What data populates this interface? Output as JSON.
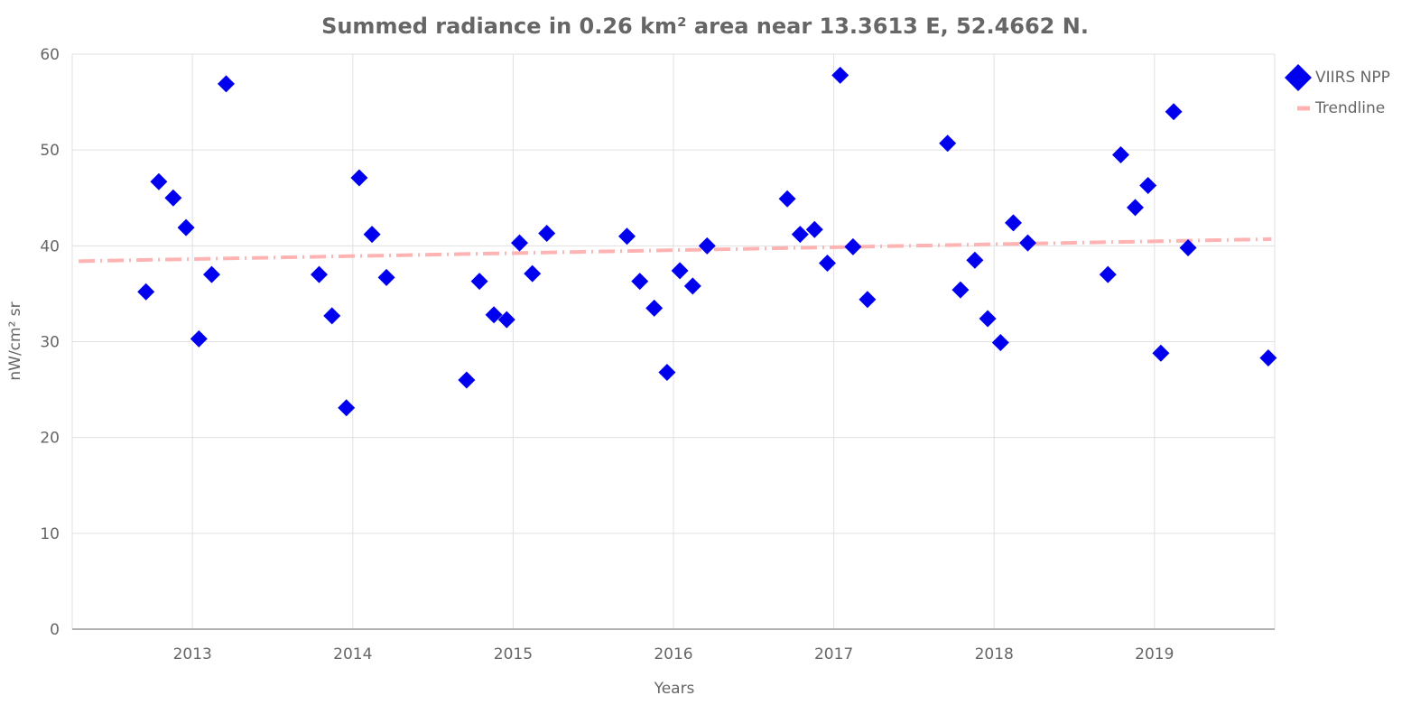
{
  "chart_data": {
    "type": "scatter",
    "title": "Summed radiance in 0.26 km² area near 13.3613 E, 52.4662 N.",
    "xlabel": "Years",
    "ylabel": "nW/cm² sr",
    "xlim": [
      2012.25,
      2019.75
    ],
    "ylim": [
      0,
      60
    ],
    "x_ticks": [
      2013,
      2014,
      2015,
      2016,
      2017,
      2018,
      2019
    ],
    "y_ticks": [
      0,
      10,
      20,
      30,
      40,
      50,
      60
    ],
    "grid": true,
    "legend_position": "top-right",
    "series": [
      {
        "name": "VIIRS NPP",
        "kind": "points",
        "color": "#0000ee",
        "marker": "diamond",
        "points": [
          [
            2012.71,
            35.2
          ],
          [
            2012.79,
            46.7
          ],
          [
            2012.88,
            45.0
          ],
          [
            2012.96,
            41.9
          ],
          [
            2013.04,
            30.3
          ],
          [
            2013.12,
            37.0
          ],
          [
            2013.21,
            56.9
          ],
          [
            2013.79,
            37.0
          ],
          [
            2013.87,
            32.7
          ],
          [
            2013.96,
            23.1
          ],
          [
            2014.04,
            47.1
          ],
          [
            2014.12,
            41.2
          ],
          [
            2014.21,
            36.7
          ],
          [
            2014.71,
            26.0
          ],
          [
            2014.79,
            36.3
          ],
          [
            2014.88,
            32.8
          ],
          [
            2014.96,
            32.3
          ],
          [
            2015.04,
            40.3
          ],
          [
            2015.12,
            37.1
          ],
          [
            2015.21,
            41.3
          ],
          [
            2015.71,
            41.0
          ],
          [
            2015.79,
            36.3
          ],
          [
            2015.88,
            33.5
          ],
          [
            2015.96,
            26.8
          ],
          [
            2016.04,
            37.4
          ],
          [
            2016.12,
            35.8
          ],
          [
            2016.21,
            40.0
          ],
          [
            2016.71,
            44.9
          ],
          [
            2016.79,
            41.2
          ],
          [
            2016.88,
            41.7
          ],
          [
            2016.96,
            38.2
          ],
          [
            2017.04,
            57.8
          ],
          [
            2017.12,
            39.9
          ],
          [
            2017.21,
            34.4
          ],
          [
            2017.71,
            50.7
          ],
          [
            2017.79,
            35.4
          ],
          [
            2017.88,
            38.5
          ],
          [
            2017.96,
            32.4
          ],
          [
            2018.04,
            29.9
          ],
          [
            2018.12,
            42.4
          ],
          [
            2018.21,
            40.3
          ],
          [
            2018.71,
            37.0
          ],
          [
            2018.79,
            49.5
          ],
          [
            2018.88,
            44.0
          ],
          [
            2018.96,
            46.3
          ],
          [
            2019.04,
            28.8
          ],
          [
            2019.12,
            54.0
          ],
          [
            2019.21,
            39.8
          ],
          [
            2019.71,
            28.3
          ]
        ]
      },
      {
        "name": "Trendline",
        "kind": "line",
        "color": "#ffb3b3",
        "dash": "dashdot",
        "points": [
          [
            2012.29,
            38.4
          ],
          [
            2019.73,
            40.7
          ]
        ]
      }
    ]
  }
}
